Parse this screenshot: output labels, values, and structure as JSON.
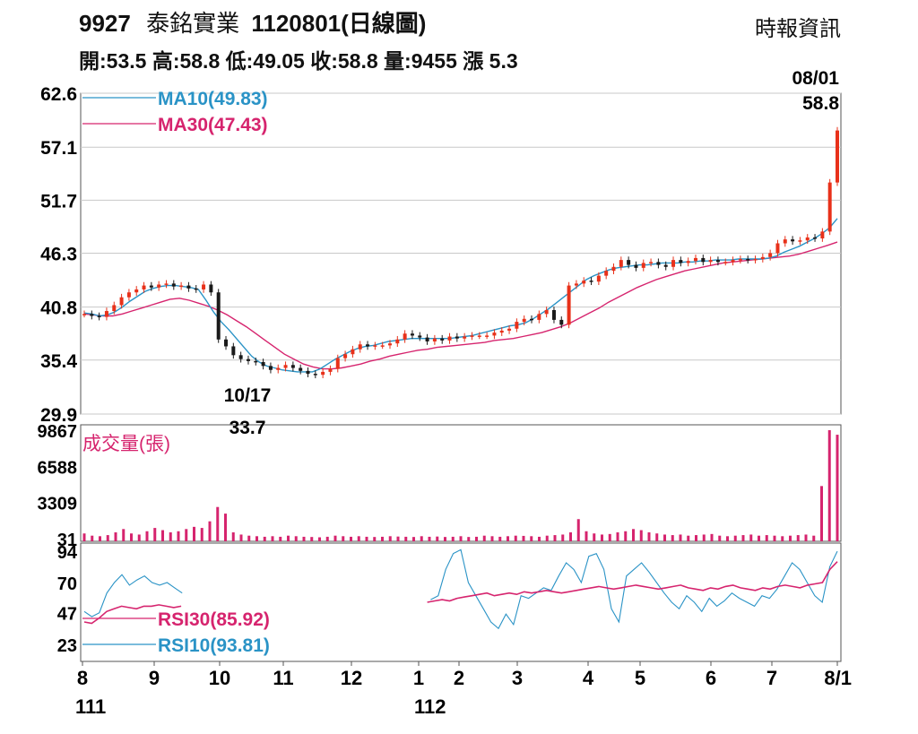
{
  "header": {
    "title_code": "9927",
    "title_name": "泰銘實業",
    "title_date": "1120801(日線圖)",
    "source": "時報資訊",
    "summary": "開:53.5 高:58.8 低:49.05 收:58.8 量:9455 漲 5.3"
  },
  "colors": {
    "up": "#e8311a",
    "down": "#1a1a1a",
    "ma10": "#2a93c6",
    "ma30": "#d6246e",
    "volume": "#d6246e",
    "rsi30": "#d6246e",
    "rsi10": "#2a93c6",
    "grid": "#c8c8c8",
    "axis": "#555555"
  },
  "chart_data": {
    "type": "candlestick",
    "price_panel": {
      "y_ticks": [
        "62.6",
        "57.1",
        "51.7",
        "46.3",
        "40.8",
        "35.4",
        "29.9"
      ],
      "ylim": [
        29.9,
        62.6
      ],
      "grid": true,
      "legend": [
        {
          "label": "MA10(49.83)",
          "color": "#2a93c6"
        },
        {
          "label": "MA30(47.43)",
          "color": "#d6246e"
        }
      ],
      "annotations": [
        {
          "label_top": "08/01",
          "label_bottom": "58.8",
          "date": "8/1",
          "value": 58.8,
          "type": "high"
        },
        {
          "label_top": "10/17",
          "label_bottom": "33.7",
          "date": "10/17",
          "value": 33.7,
          "type": "low"
        }
      ],
      "close": [
        40.1,
        39.9,
        39.8,
        40.4,
        41.0,
        41.8,
        42.3,
        42.6,
        43.0,
        42.8,
        43.1,
        43.2,
        42.9,
        43.0,
        42.7,
        42.6,
        43.1,
        42.3,
        37.5,
        36.8,
        35.9,
        35.5,
        35.3,
        35.2,
        34.8,
        34.4,
        34.6,
        34.9,
        34.6,
        34.3,
        34.0,
        33.9,
        34.2,
        34.5,
        35.6,
        36.0,
        36.5,
        37.0,
        36.8,
        36.9,
        36.9,
        37.1,
        37.5,
        38.1,
        37.9,
        37.7,
        37.3,
        37.6,
        37.4,
        37.8,
        37.6,
        37.8,
        37.9,
        37.9,
        37.9,
        38.2,
        38.4,
        38.6,
        39.3,
        39.6,
        39.5,
        40.1,
        40.5,
        39.5,
        39.0,
        43.0,
        43.2,
        43.5,
        43.4,
        44.0,
        44.5,
        44.9,
        45.6,
        45.1,
        44.8,
        45.3,
        45.4,
        45.1,
        44.9,
        45.6,
        45.3,
        45.5,
        45.8,
        45.4,
        45.6,
        45.4,
        45.4,
        45.6,
        45.7,
        45.6,
        45.7,
        45.9,
        46.3,
        47.3,
        47.7,
        47.5,
        47.6,
        47.9,
        47.8,
        48.5,
        53.5,
        58.8
      ],
      "ma10": [
        40.2,
        40.1,
        39.9,
        40.0,
        40.3,
        40.8,
        41.4,
        41.9,
        42.4,
        42.7,
        42.9,
        43.0,
        43.0,
        42.9,
        42.8,
        42.6,
        41.5,
        40.3,
        39.3,
        38.5,
        37.6,
        36.7,
        35.8,
        35.2,
        34.8,
        34.6,
        34.4,
        34.3,
        34.2,
        34.2,
        34.2,
        34.5,
        35.0,
        35.5,
        35.9,
        36.3,
        36.6,
        36.8,
        36.9,
        37.1,
        37.3,
        37.4,
        37.5,
        37.6,
        37.6,
        37.6,
        37.6,
        37.6,
        37.6,
        37.7,
        37.8,
        37.9,
        38.1,
        38.3,
        38.5,
        38.7,
        38.9,
        39.0,
        39.2,
        39.6,
        40.1,
        40.6,
        41.2,
        41.8,
        42.4,
        43.0,
        43.6,
        44.0,
        44.3,
        44.6,
        44.8,
        44.9,
        45.0,
        45.1,
        45.1,
        45.2,
        45.3,
        45.3,
        45.3,
        45.4,
        45.4,
        45.5,
        45.5,
        45.6,
        45.6,
        45.6,
        45.7,
        45.7,
        45.7,
        45.7,
        45.8,
        46.0,
        46.4,
        46.7,
        47.0,
        47.4,
        47.8,
        48.3,
        48.9,
        49.83
      ],
      "ma30": [
        40.1,
        40.0,
        39.9,
        39.9,
        40.1,
        40.4,
        40.7,
        41.0,
        41.3,
        41.6,
        41.7,
        41.5,
        41.2,
        40.9,
        40.5,
        40.0,
        39.4,
        38.8,
        38.1,
        37.4,
        36.7,
        36.0,
        35.5,
        35.0,
        34.7,
        34.5,
        34.5,
        34.6,
        34.8,
        35.0,
        35.3,
        35.5,
        35.8,
        36.0,
        36.2,
        36.4,
        36.5,
        36.7,
        36.8,
        36.9,
        37.0,
        37.1,
        37.2,
        37.4,
        37.5,
        37.6,
        37.8,
        38.0,
        38.2,
        38.5,
        38.8,
        39.2,
        39.7,
        40.2,
        40.7,
        41.3,
        41.8,
        42.3,
        42.8,
        43.2,
        43.6,
        43.9,
        44.2,
        44.5,
        44.7,
        44.9,
        45.1,
        45.3,
        45.4,
        45.5,
        45.6,
        45.7,
        45.8,
        45.9,
        46.0,
        46.2,
        46.5,
        46.8,
        47.1,
        47.43
      ]
    },
    "volume_panel": {
      "label": "成交量(張)",
      "y_ticks": [
        "9867",
        "6588",
        "3309",
        "31"
      ],
      "ylim": [
        31,
        9867
      ],
      "values": [
        500,
        300,
        250,
        350,
        600,
        900,
        500,
        400,
        700,
        1000,
        800,
        600,
        700,
        900,
        1100,
        1000,
        1600,
        2900,
        2300,
        600,
        400,
        300,
        250,
        200,
        250,
        200,
        300,
        250,
        200,
        180,
        150,
        200,
        300,
        250,
        200,
        250,
        200,
        180,
        200,
        250,
        220,
        200,
        180,
        250,
        200,
        220,
        180,
        200,
        250,
        180,
        200,
        300,
        250,
        200,
        250,
        300,
        280,
        250,
        200,
        300,
        350,
        400,
        600,
        1800,
        700,
        500,
        400,
        450,
        600,
        700,
        900,
        800,
        600,
        500,
        400,
        350,
        400,
        300,
        350,
        400,
        450,
        300,
        250,
        300,
        350,
        400,
        300,
        350,
        300,
        250,
        300,
        350,
        400,
        300,
        4800,
        9867,
        9455
      ]
    },
    "rsi_panel": {
      "y_ticks": [
        "94",
        "70",
        "47",
        "23"
      ],
      "ylim": [
        10,
        100
      ],
      "legend": [
        {
          "label": "RSI30(85.92)",
          "color": "#d6246e"
        },
        {
          "label": "RSI10(93.81)",
          "color": "#2a93c6"
        }
      ],
      "rsi30": [
        40,
        39,
        43,
        48,
        50,
        52,
        51,
        50,
        52,
        52,
        53,
        52,
        51,
        52,
        null,
        null,
        null,
        null,
        null,
        null,
        null,
        null,
        null,
        null,
        null,
        null,
        null,
        null,
        null,
        null,
        null,
        null,
        null,
        null,
        null,
        null,
        null,
        null,
        null,
        null,
        null,
        null,
        null,
        null,
        null,
        null,
        55,
        56,
        57,
        56,
        58,
        59,
        60,
        61,
        62,
        60,
        61,
        62,
        61,
        63,
        62,
        63,
        64,
        63,
        62,
        63,
        64,
        65,
        66,
        67,
        66,
        65,
        66,
        67,
        68,
        67,
        66,
        65,
        66,
        67,
        68,
        66,
        65,
        64,
        66,
        65,
        67,
        68,
        66,
        65,
        64,
        66,
        65,
        67,
        68,
        67,
        66,
        68,
        69,
        70,
        80,
        85.92
      ],
      "rsi10": [
        48,
        44,
        47,
        62,
        70,
        76,
        68,
        72,
        75,
        70,
        68,
        70,
        66,
        62,
        null,
        null,
        null,
        null,
        null,
        null,
        null,
        null,
        null,
        null,
        null,
        null,
        null,
        null,
        null,
        null,
        null,
        null,
        null,
        null,
        null,
        null,
        null,
        null,
        null,
        null,
        null,
        null,
        null,
        null,
        null,
        null,
        57,
        60,
        80,
        92,
        95,
        70,
        60,
        50,
        40,
        35,
        46,
        38,
        60,
        58,
        62,
        66,
        64,
        75,
        85,
        80,
        70,
        90,
        92,
        80,
        50,
        40,
        75,
        80,
        85,
        78,
        70,
        62,
        55,
        50,
        60,
        55,
        48,
        58,
        52,
        56,
        62,
        58,
        55,
        52,
        60,
        58,
        65,
        75,
        85,
        80,
        70,
        60,
        55,
        82,
        93.81
      ]
    },
    "x_ticks": [
      "8",
      "9",
      "10",
      "11",
      "12",
      "1",
      "2",
      "3",
      "4",
      "5",
      "6",
      "7",
      "8/1"
    ],
    "year_labels": [
      "111",
      "112"
    ]
  }
}
